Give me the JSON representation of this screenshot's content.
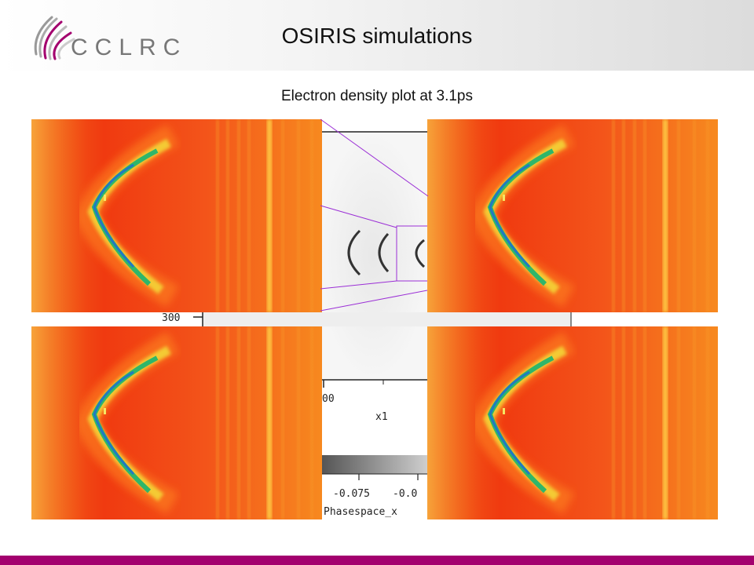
{
  "slide": {
    "title": "OSIRIS simulations",
    "subtitle": "Electron density plot at 3.1ps",
    "logo_text": "CCLRC"
  },
  "background_plot": {
    "y_tick": "300",
    "x_tick": "00",
    "x_label": "x1",
    "colorbar_ticks": [
      "-0.075",
      "-0.0"
    ],
    "colorbar_label": "Phasespace_x"
  },
  "colors": {
    "accent_bar": "#a3006e",
    "zoom_lines": "#9b2fd6",
    "density_background": "#f03a10",
    "density_high": "#1fa070"
  },
  "panels": [
    "density-panel-top-left",
    "density-panel-top-right",
    "density-panel-bottom-left",
    "density-panel-bottom-right"
  ]
}
